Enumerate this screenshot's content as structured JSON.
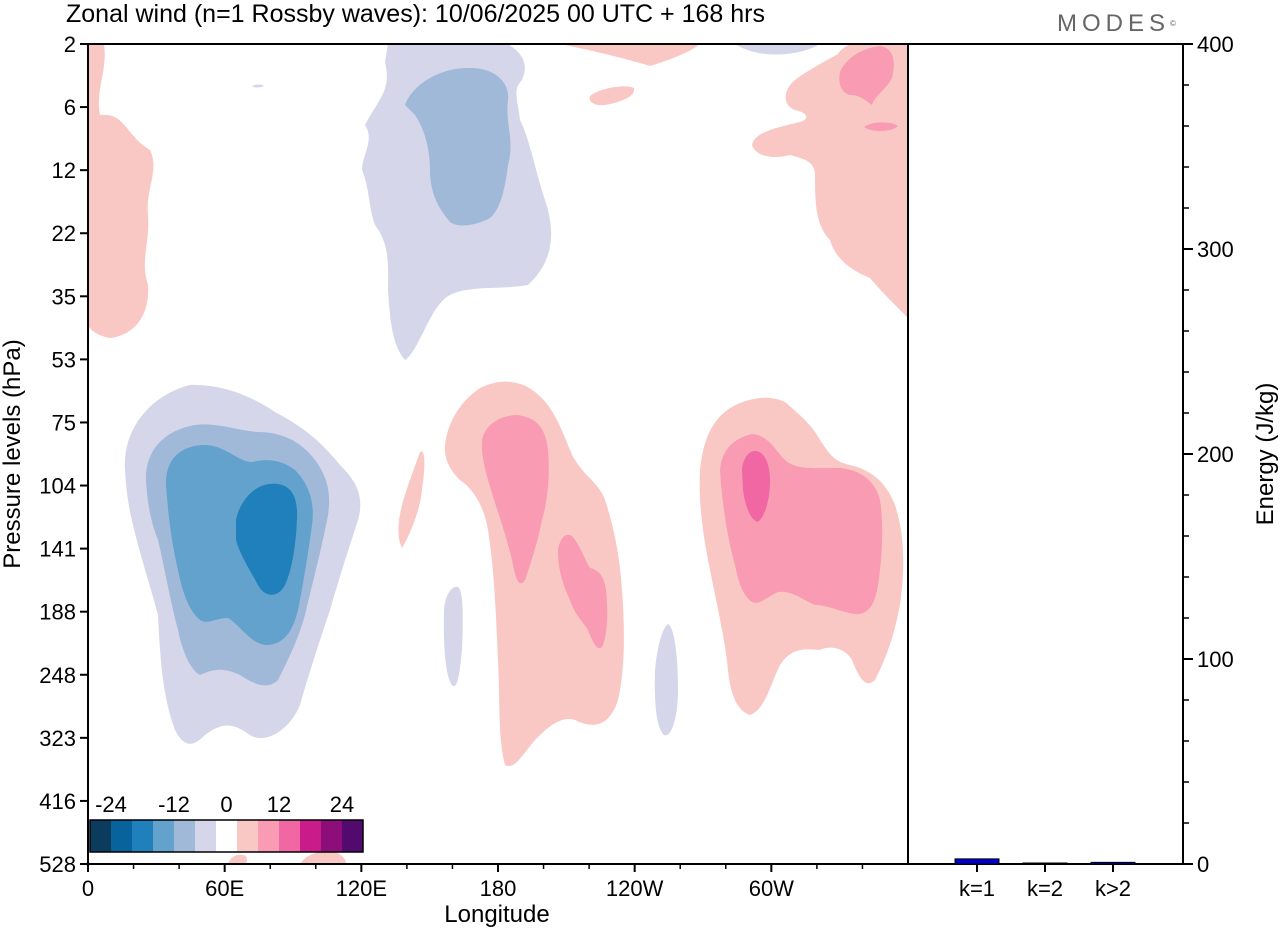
{
  "header": {
    "title": "Zonal wind (n=1 Rossby waves):  10/06/2025  00 UTC  + 168 hrs",
    "logo": "MODES",
    "logo_mark": "©"
  },
  "chart_data": [
    {
      "type": "contour",
      "xlabel": "Longitude",
      "ylabel": "Pressure levels (hPa)",
      "x_ticks": [
        "0",
        "60E",
        "120E",
        "180",
        "120W",
        "60W"
      ],
      "y_ticks": [
        "2",
        "6",
        "12",
        "22",
        "35",
        "53",
        "75",
        "104",
        "141",
        "188",
        "248",
        "323",
        "416",
        "528"
      ],
      "y_scale": "ordered pressure levels, 2 hPa at top to 528 hPa at bottom",
      "colorbar": {
        "labels": [
          "-24",
          "-12",
          "0",
          "12",
          "24"
        ],
        "colors": [
          "#0b3c5d",
          "#08629b",
          "#1f80bb",
          "#62a2cc",
          "#a1b9d9",
          "#d5d6e9",
          "#ffffff",
          "#f9c8c4",
          "#f99bb2",
          "#f067a4",
          "#c91b8a",
          "#8d0d7a",
          "#530a6e"
        ]
      },
      "features": [
        {
          "sign": "negative",
          "min_level": -18,
          "center_lon": "80E",
          "center_hPa": 130
        },
        {
          "sign": "negative",
          "min_level": -9,
          "center_lon": "130E",
          "center_hPa": 12
        },
        {
          "sign": "positive",
          "max_level": 9,
          "center_lon": "175W",
          "center_hPa": 150
        },
        {
          "sign": "positive",
          "max_level": 12,
          "center_lon": "55W",
          "center_hPa": 115
        },
        {
          "sign": "positive",
          "max_level": 9,
          "center_lon": "40W",
          "center_hPa": 4
        }
      ]
    },
    {
      "type": "bar",
      "categories": [
        "k=1",
        "k=2",
        "k>2"
      ],
      "values": [
        2.5,
        0.4,
        0.8
      ],
      "ylabel": "Energy (J/kg)",
      "ylim": [
        0,
        400
      ],
      "y_ticks": [
        "0",
        "100",
        "200",
        "300",
        "400"
      ],
      "bar_color": "#0000cc"
    }
  ]
}
